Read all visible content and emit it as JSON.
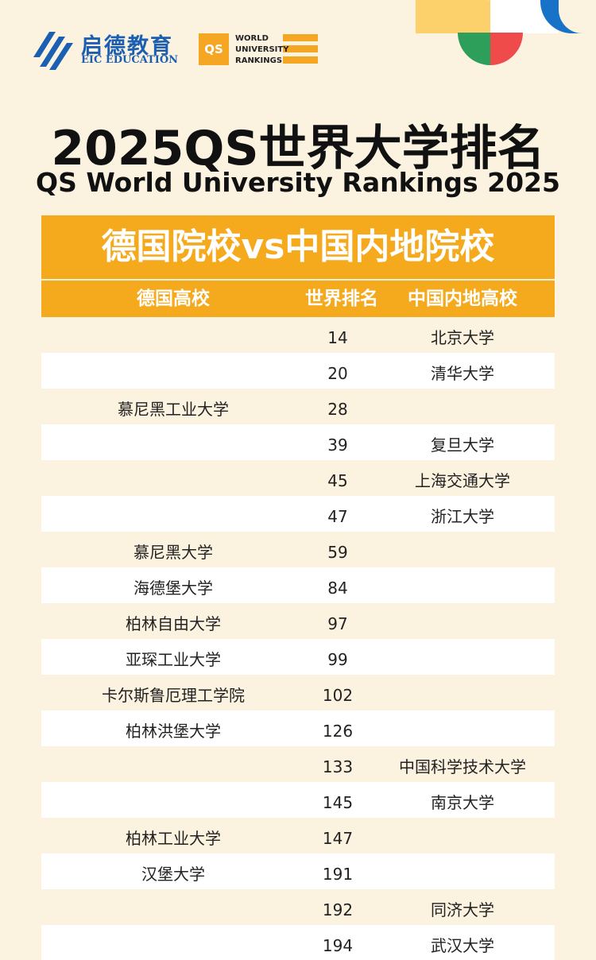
{
  "logos": {
    "eic_cn": "启德教育",
    "eic_en": "EIC EDUCATION",
    "qs_box": "QS",
    "qs_lines": [
      "WORLD",
      "UNIVERSITY",
      "RANKINGS"
    ]
  },
  "colors": {
    "accent_orange": "#f5a91d",
    "eic_blue": "#1b5fb3",
    "background_cream": "#fbf2df"
  },
  "title_cn": "2025QS世界大学排名",
  "title_en": "QS World University Rankings 2025",
  "banner": "德国院校vs中国内地院校",
  "headers": [
    "德国高校",
    "世界排名",
    "中国内地高校"
  ],
  "rows": [
    {
      "de": "",
      "rank": "14",
      "cn": "北京大学"
    },
    {
      "de": "",
      "rank": "20",
      "cn": "清华大学"
    },
    {
      "de": "慕尼黑工业大学",
      "rank": "28",
      "cn": ""
    },
    {
      "de": "",
      "rank": "39",
      "cn": "复旦大学"
    },
    {
      "de": "",
      "rank": "45",
      "cn": "上海交通大学"
    },
    {
      "de": "",
      "rank": "47",
      "cn": "浙江大学"
    },
    {
      "de": "慕尼黑大学",
      "rank": "59",
      "cn": ""
    },
    {
      "de": "海德堡大学",
      "rank": "84",
      "cn": ""
    },
    {
      "de": "柏林自由大学",
      "rank": "97",
      "cn": ""
    },
    {
      "de": "亚琛工业大学",
      "rank": "99",
      "cn": ""
    },
    {
      "de": "卡尔斯鲁厄理工学院",
      "rank": "102",
      "cn": ""
    },
    {
      "de": "柏林洪堡大学",
      "rank": "126",
      "cn": ""
    },
    {
      "de": "",
      "rank": "133",
      "cn": "中国科学技术大学"
    },
    {
      "de": "",
      "rank": "145",
      "cn": "南京大学"
    },
    {
      "de": "柏林工业大学",
      "rank": "147",
      "cn": ""
    },
    {
      "de": "汉堡大学",
      "rank": "191",
      "cn": ""
    },
    {
      "de": "",
      "rank": "192",
      "cn": "同济大学"
    },
    {
      "de": "",
      "rank": "194",
      "cn": "武汉大学"
    }
  ]
}
